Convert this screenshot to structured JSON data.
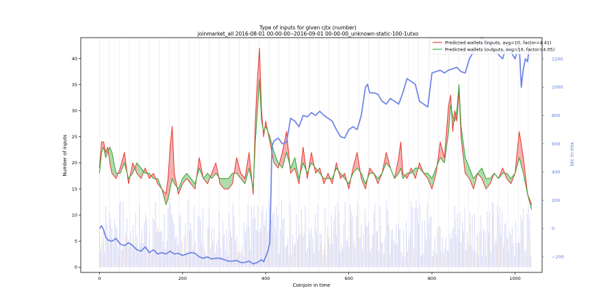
{
  "chart_data": {
    "type": "line",
    "title": "Type of inputs for given cjtx (number)",
    "subtitle": "joinmarket_all 2016-08-01 00-00-00--2016-09-01 00-00-00_unknown-static-100-1utxo",
    "xlabel": "Coinjoin in time",
    "ylabel": "Number of inputs",
    "y2label": "btc in mix",
    "xlim": [
      -45,
      1065
    ],
    "ylim": [
      -1,
      44
    ],
    "y2lim": [
      -310,
      1350
    ],
    "xticks": [
      0,
      200,
      400,
      600,
      800,
      1000
    ],
    "yticks": [
      0,
      5,
      10,
      15,
      20,
      25,
      30,
      35,
      40
    ],
    "y2ticks": [
      -200,
      0,
      200,
      400,
      600,
      800,
      1000,
      1200
    ],
    "legend_position": "top-right",
    "series": [
      {
        "name": "Predicted wallets (inputs, avg=10, factor=4.41)",
        "color": "#e8413b",
        "x": [
          0,
          5,
          10,
          15,
          20,
          25,
          30,
          40,
          50,
          60,
          70,
          80,
          90,
          100,
          110,
          120,
          130,
          140,
          150,
          160,
          165,
          170,
          175,
          180,
          190,
          200,
          210,
          220,
          230,
          240,
          250,
          260,
          270,
          280,
          290,
          300,
          310,
          320,
          330,
          340,
          350,
          360,
          370,
          375,
          380,
          385,
          390,
          395,
          400,
          410,
          420,
          430,
          440,
          450,
          460,
          470,
          480,
          490,
          500,
          510,
          520,
          530,
          540,
          550,
          560,
          570,
          580,
          590,
          600,
          610,
          620,
          630,
          640,
          650,
          660,
          670,
          680,
          690,
          700,
          710,
          720,
          725,
          730,
          740,
          750,
          760,
          770,
          780,
          790,
          800,
          810,
          820,
          830,
          840,
          845,
          850,
          855,
          860,
          865,
          870,
          880,
          890,
          900,
          910,
          920,
          930,
          940,
          950,
          960,
          970,
          980,
          990,
          1000,
          1010,
          1020,
          1030,
          1040
        ],
        "values": [
          19,
          24,
          24,
          22,
          23,
          20,
          18,
          17,
          19,
          22,
          16,
          20,
          18,
          17,
          19,
          17,
          18,
          16,
          15,
          14,
          17,
          23,
          27,
          18,
          14,
          16,
          17,
          16,
          15,
          21,
          17,
          16,
          18,
          20,
          16,
          15,
          15,
          16,
          21,
          18,
          17,
          22,
          14,
          28,
          36,
          42,
          30,
          25,
          28,
          24,
          20,
          19,
          22,
          26,
          18,
          19,
          16,
          23,
          17,
          22,
          18,
          19,
          16,
          18,
          16,
          20,
          17,
          18,
          15,
          19,
          22,
          17,
          15,
          19,
          18,
          16,
          18,
          22,
          19,
          17,
          21,
          24,
          18,
          17,
          19,
          17,
          20,
          18,
          17,
          15,
          18,
          24,
          21,
          31,
          33,
          26,
          30,
          28,
          34,
          25,
          18,
          17,
          15,
          18,
          17,
          15,
          16,
          18,
          17,
          19,
          17,
          16,
          18,
          26,
          21,
          14,
          12
        ]
      },
      {
        "name": "Predicted wallets (outputs, avg=10, factor=4.05)",
        "color": "#3aa63a",
        "x": [
          0,
          5,
          10,
          15,
          20,
          25,
          30,
          40,
          50,
          60,
          70,
          80,
          90,
          100,
          110,
          120,
          130,
          140,
          150,
          160,
          165,
          170,
          175,
          180,
          190,
          200,
          210,
          220,
          230,
          240,
          250,
          260,
          270,
          280,
          290,
          300,
          310,
          320,
          330,
          340,
          350,
          360,
          370,
          375,
          380,
          385,
          390,
          395,
          400,
          410,
          420,
          430,
          440,
          450,
          460,
          470,
          480,
          490,
          500,
          510,
          520,
          530,
          540,
          550,
          560,
          570,
          580,
          590,
          600,
          610,
          620,
          630,
          640,
          650,
          660,
          670,
          680,
          690,
          700,
          710,
          720,
          725,
          730,
          740,
          750,
          760,
          770,
          780,
          790,
          800,
          810,
          820,
          830,
          840,
          845,
          850,
          855,
          860,
          865,
          870,
          880,
          890,
          900,
          910,
          920,
          930,
          940,
          950,
          960,
          970,
          980,
          990,
          1000,
          1010,
          1020,
          1030,
          1040
        ],
        "values": [
          18,
          22,
          23,
          21,
          22,
          23,
          22,
          18,
          18,
          20,
          17,
          18,
          20,
          19,
          18,
          18,
          17,
          17,
          15,
          12,
          13,
          15,
          17,
          16,
          15,
          17,
          18,
          17,
          16,
          19,
          17,
          18,
          17,
          18,
          17,
          17,
          17,
          18,
          18,
          17,
          16,
          19,
          15,
          24,
          30,
          36,
          28,
          26,
          27,
          25,
          22,
          20,
          19,
          22,
          19,
          21,
          17,
          20,
          18,
          20,
          19,
          18,
          17,
          17,
          17,
          19,
          18,
          17,
          16,
          18,
          19,
          18,
          16,
          18,
          18,
          17,
          18,
          20,
          19,
          17,
          18,
          19,
          17,
          18,
          18,
          19,
          19,
          18,
          18,
          17,
          19,
          21,
          20,
          26,
          31,
          29,
          28,
          30,
          35,
          27,
          21,
          19,
          17,
          18,
          19,
          17,
          17,
          18,
          17,
          18,
          18,
          17,
          18,
          21,
          18,
          14,
          11
        ]
      },
      {
        "name": "btc in mix",
        "color": "#6f86e6",
        "axis": "right",
        "x": [
          0,
          5,
          10,
          15,
          20,
          30,
          40,
          50,
          60,
          70,
          80,
          90,
          100,
          110,
          120,
          130,
          140,
          150,
          160,
          170,
          180,
          190,
          200,
          210,
          220,
          230,
          240,
          250,
          260,
          270,
          280,
          290,
          300,
          310,
          320,
          330,
          340,
          350,
          360,
          370,
          380,
          385,
          390,
          395,
          400,
          405,
          410,
          415,
          420,
          430,
          440,
          450,
          460,
          470,
          480,
          490,
          500,
          510,
          520,
          530,
          540,
          550,
          560,
          570,
          580,
          590,
          600,
          610,
          620,
          630,
          640,
          645,
          650,
          660,
          670,
          680,
          690,
          700,
          710,
          720,
          730,
          740,
          750,
          760,
          770,
          780,
          790,
          800,
          810,
          820,
          830,
          840,
          850,
          860,
          870,
          880,
          890,
          900,
          910,
          920,
          930,
          940,
          950,
          960,
          970,
          980,
          990,
          1000,
          1010,
          1015,
          1020,
          1025,
          1030,
          1035,
          1040
        ],
        "values": [
          0,
          20,
          -10,
          -60,
          -80,
          -90,
          -70,
          -110,
          -120,
          -100,
          -120,
          -150,
          -160,
          -130,
          -170,
          -150,
          -180,
          -170,
          -180,
          -160,
          -180,
          -175,
          -190,
          -180,
          -170,
          -175,
          -200,
          -210,
          -200,
          -215,
          -210,
          -210,
          -220,
          -230,
          -230,
          -225,
          -240,
          -240,
          -230,
          -250,
          -240,
          -230,
          -220,
          -235,
          -200,
          -160,
          -100,
          580,
          620,
          640,
          600,
          610,
          780,
          760,
          720,
          800,
          790,
          820,
          800,
          830,
          800,
          780,
          760,
          700,
          650,
          640,
          700,
          720,
          700,
          800,
          1000,
          1020,
          960,
          960,
          950,
          900,
          880,
          920,
          900,
          880,
          960,
          1060,
          1040,
          1020,
          900,
          880,
          860,
          1100,
          1110,
          1120,
          1100,
          1120,
          1130,
          1140,
          1110,
          1100,
          1200,
          1250,
          1300,
          1350,
          1320,
          1300,
          1260,
          1230,
          1200,
          1300,
          1250,
          1200,
          1300,
          1000,
          1130,
          1200,
          1180,
          1300,
          1280
        ]
      }
    ]
  }
}
